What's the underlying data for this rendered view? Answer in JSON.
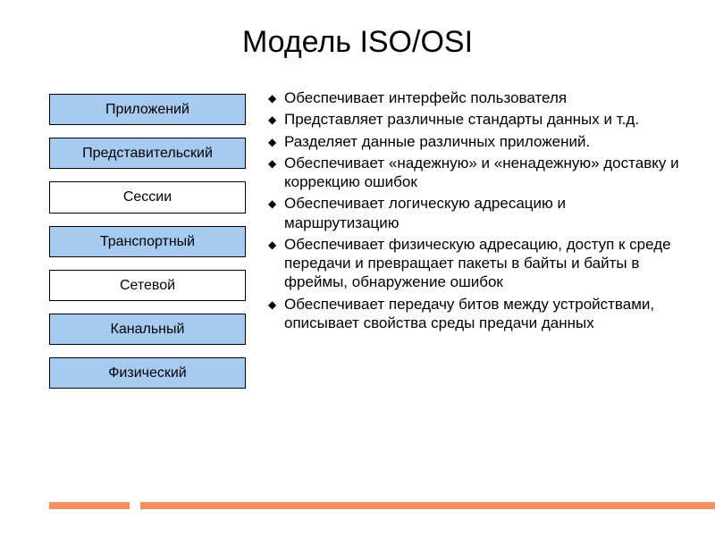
{
  "title": "Модель ISO/OSI",
  "layers": [
    {
      "label": "Приложений",
      "fill": "#a6caf0"
    },
    {
      "label": "Представительский",
      "fill": "#a6caf0"
    },
    {
      "label": "Сессии",
      "fill": "#ffffff"
    },
    {
      "label": "Транспортный",
      "fill": "#a6caf0"
    },
    {
      "label": "Сетевой",
      "fill": "#ffffff"
    },
    {
      "label": "Канальный",
      "fill": "#a6caf0"
    },
    {
      "label": "Физический",
      "fill": "#a6caf0"
    }
  ],
  "bullets": [
    "Обеспечивает интерфейс пользователя",
    "Представляет различные стандарты данных и т.д.",
    "Разделяет данные различных приложений.",
    "Обеспечивает «надежную» и «ненадежную» доставку и коррекцию ошибок",
    "Обеспечивает логическую адресацию и маршрутизацию",
    "Обеспечивает физическую адресацию, доступ к среде передачи и превращает пакеты в байты и байты в фреймы, обнаружение ошибок",
    "Обеспечивает передачу битов между устройствами, описывает свойства среды предачи данных"
  ],
  "footer_color": "#f09060",
  "layer_box": {
    "border_color": "#000000",
    "font_size": 16
  },
  "bullet_style": {
    "font_size": 17,
    "marker": "◆"
  }
}
